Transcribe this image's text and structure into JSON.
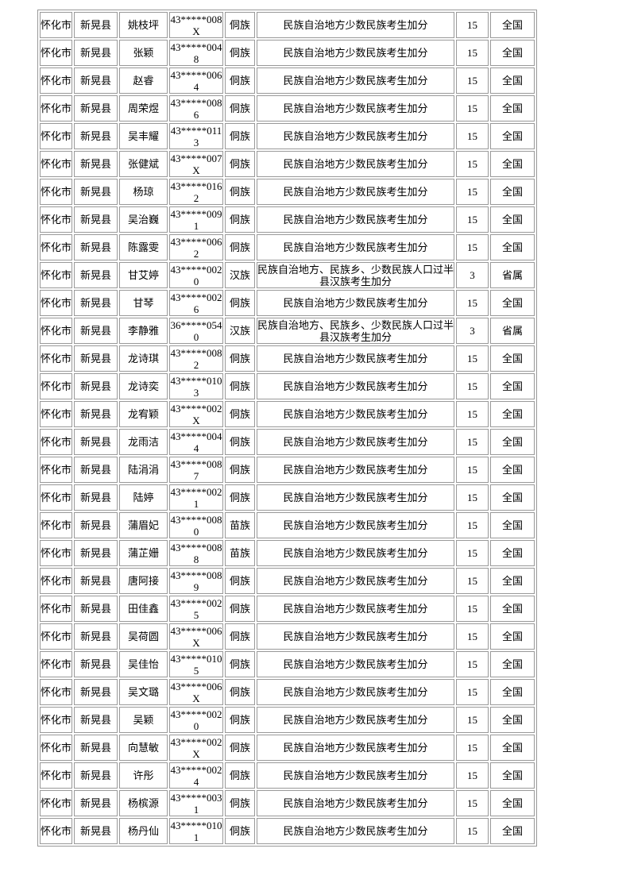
{
  "page": {
    "background_color": "#ffffff",
    "border_color": "#999999",
    "text_color": "#000000"
  },
  "table": {
    "rows": [
      {
        "city": "怀化市",
        "county": "新晃县",
        "name": "姚枝坪",
        "id": "43*****008X",
        "ethnicity": "侗族",
        "reason": "民族自治地方少数民族考生加分",
        "points": "15",
        "scope": "全国"
      },
      {
        "city": "怀化市",
        "county": "新晃县",
        "name": "张颖",
        "id": "43*****0048",
        "ethnicity": "侗族",
        "reason": "民族自治地方少数民族考生加分",
        "points": "15",
        "scope": "全国"
      },
      {
        "city": "怀化市",
        "county": "新晃县",
        "name": "赵睿",
        "id": "43*****0064",
        "ethnicity": "侗族",
        "reason": "民族自治地方少数民族考生加分",
        "points": "15",
        "scope": "全国"
      },
      {
        "city": "怀化市",
        "county": "新晃县",
        "name": "周荣煜",
        "id": "43*****0086",
        "ethnicity": "侗族",
        "reason": "民族自治地方少数民族考生加分",
        "points": "15",
        "scope": "全国"
      },
      {
        "city": "怀化市",
        "county": "新晃县",
        "name": "吴丰耀",
        "id": "43*****0113",
        "ethnicity": "侗族",
        "reason": "民族自治地方少数民族考生加分",
        "points": "15",
        "scope": "全国"
      },
      {
        "city": "怀化市",
        "county": "新晃县",
        "name": "张健斌",
        "id": "43*****007X",
        "ethnicity": "侗族",
        "reason": "民族自治地方少数民族考生加分",
        "points": "15",
        "scope": "全国"
      },
      {
        "city": "怀化市",
        "county": "新晃县",
        "name": "杨琼",
        "id": "43*****0162",
        "ethnicity": "侗族",
        "reason": "民族自治地方少数民族考生加分",
        "points": "15",
        "scope": "全国"
      },
      {
        "city": "怀化市",
        "county": "新晃县",
        "name": "吴治巍",
        "id": "43*****0091",
        "ethnicity": "侗族",
        "reason": "民族自治地方少数民族考生加分",
        "points": "15",
        "scope": "全国"
      },
      {
        "city": "怀化市",
        "county": "新晃县",
        "name": "陈露雯",
        "id": "43*****0062",
        "ethnicity": "侗族",
        "reason": "民族自治地方少数民族考生加分",
        "points": "15",
        "scope": "全国"
      },
      {
        "city": "怀化市",
        "county": "新晃县",
        "name": "甘艾婷",
        "id": "43*****0020",
        "ethnicity": "汉族",
        "reason": "民族自治地方、民族乡、少数民族人口过半县汉族考生加分",
        "points": "3",
        "scope": "省属"
      },
      {
        "city": "怀化市",
        "county": "新晃县",
        "name": "甘琴",
        "id": "43*****0026",
        "ethnicity": "侗族",
        "reason": "民族自治地方少数民族考生加分",
        "points": "15",
        "scope": "全国"
      },
      {
        "city": "怀化市",
        "county": "新晃县",
        "name": "李静雅",
        "id": "36*****0540",
        "ethnicity": "汉族",
        "reason": "民族自治地方、民族乡、少数民族人口过半县汉族考生加分",
        "points": "3",
        "scope": "省属"
      },
      {
        "city": "怀化市",
        "county": "新晃县",
        "name": "龙诗琪",
        "id": "43*****0082",
        "ethnicity": "侗族",
        "reason": "民族自治地方少数民族考生加分",
        "points": "15",
        "scope": "全国"
      },
      {
        "city": "怀化市",
        "county": "新晃县",
        "name": "龙诗奕",
        "id": "43*****0103",
        "ethnicity": "侗族",
        "reason": "民族自治地方少数民族考生加分",
        "points": "15",
        "scope": "全国"
      },
      {
        "city": "怀化市",
        "county": "新晃县",
        "name": "龙宥颖",
        "id": "43*****002X",
        "ethnicity": "侗族",
        "reason": "民族自治地方少数民族考生加分",
        "points": "15",
        "scope": "全国"
      },
      {
        "city": "怀化市",
        "county": "新晃县",
        "name": "龙雨洁",
        "id": "43*****0044",
        "ethnicity": "侗族",
        "reason": "民族自治地方少数民族考生加分",
        "points": "15",
        "scope": "全国"
      },
      {
        "city": "怀化市",
        "county": "新晃县",
        "name": "陆涓涓",
        "id": "43*****0087",
        "ethnicity": "侗族",
        "reason": "民族自治地方少数民族考生加分",
        "points": "15",
        "scope": "全国"
      },
      {
        "city": "怀化市",
        "county": "新晃县",
        "name": "陆婷",
        "id": "43*****0021",
        "ethnicity": "侗族",
        "reason": "民族自治地方少数民族考生加分",
        "points": "15",
        "scope": "全国"
      },
      {
        "city": "怀化市",
        "county": "新晃县",
        "name": "蒲眉妃",
        "id": "43*****0080",
        "ethnicity": "苗族",
        "reason": "民族自治地方少数民族考生加分",
        "points": "15",
        "scope": "全国"
      },
      {
        "city": "怀化市",
        "county": "新晃县",
        "name": "蒲芷姗",
        "id": "43*****0088",
        "ethnicity": "苗族",
        "reason": "民族自治地方少数民族考生加分",
        "points": "15",
        "scope": "全国"
      },
      {
        "city": "怀化市",
        "county": "新晃县",
        "name": "唐阿接",
        "id": "43*****0089",
        "ethnicity": "侗族",
        "reason": "民族自治地方少数民族考生加分",
        "points": "15",
        "scope": "全国"
      },
      {
        "city": "怀化市",
        "county": "新晃县",
        "name": "田佳鑫",
        "id": "43*****0025",
        "ethnicity": "侗族",
        "reason": "民族自治地方少数民族考生加分",
        "points": "15",
        "scope": "全国"
      },
      {
        "city": "怀化市",
        "county": "新晃县",
        "name": "吴荷圆",
        "id": "43*****006X",
        "ethnicity": "侗族",
        "reason": "民族自治地方少数民族考生加分",
        "points": "15",
        "scope": "全国"
      },
      {
        "city": "怀化市",
        "county": "新晃县",
        "name": "吴佳怡",
        "id": "43*****0105",
        "ethnicity": "侗族",
        "reason": "民族自治地方少数民族考生加分",
        "points": "15",
        "scope": "全国"
      },
      {
        "city": "怀化市",
        "county": "新晃县",
        "name": "吴文璐",
        "id": "43*****006X",
        "ethnicity": "侗族",
        "reason": "民族自治地方少数民族考生加分",
        "points": "15",
        "scope": "全国"
      },
      {
        "city": "怀化市",
        "county": "新晃县",
        "name": "吴颖",
        "id": "43*****0020",
        "ethnicity": "侗族",
        "reason": "民族自治地方少数民族考生加分",
        "points": "15",
        "scope": "全国"
      },
      {
        "city": "怀化市",
        "county": "新晃县",
        "name": "向慧敏",
        "id": "43*****002X",
        "ethnicity": "侗族",
        "reason": "民族自治地方少数民族考生加分",
        "points": "15",
        "scope": "全国"
      },
      {
        "city": "怀化市",
        "county": "新晃县",
        "name": "许彤",
        "id": "43*****0024",
        "ethnicity": "侗族",
        "reason": "民族自治地方少数民族考生加分",
        "points": "15",
        "scope": "全国"
      },
      {
        "city": "怀化市",
        "county": "新晃县",
        "name": "杨槟源",
        "id": "43*****0031",
        "ethnicity": "侗族",
        "reason": "民族自治地方少数民族考生加分",
        "points": "15",
        "scope": "全国"
      },
      {
        "city": "怀化市",
        "county": "新晃县",
        "name": "杨丹仙",
        "id": "43*****0101",
        "ethnicity": "侗族",
        "reason": "民族自治地方少数民族考生加分",
        "points": "15",
        "scope": "全国"
      }
    ]
  }
}
